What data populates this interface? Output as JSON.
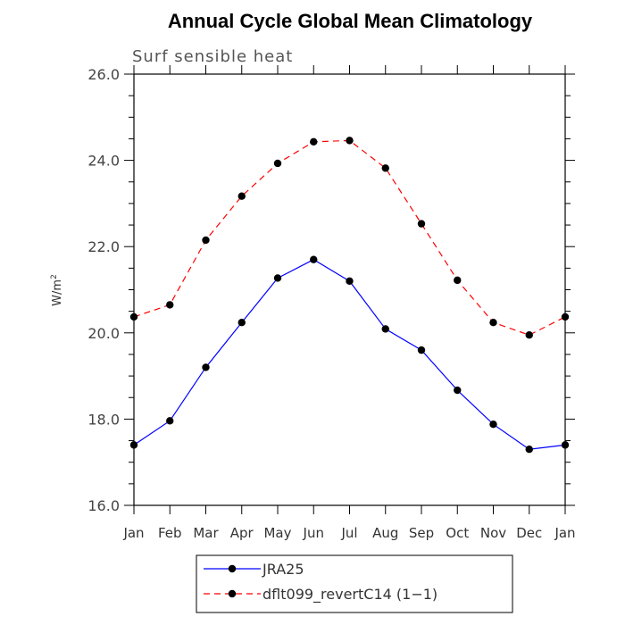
{
  "chart_data": {
    "type": "line",
    "title": "Annual Cycle Global Mean Climatology",
    "subtitle": "Surf sensible heat",
    "ylabel_text": "W/m",
    "ylabel_sup": "2",
    "categories": [
      "Jan",
      "Feb",
      "Mar",
      "Apr",
      "May",
      "Jun",
      "Jul",
      "Aug",
      "Sep",
      "Oct",
      "Nov",
      "Dec",
      "Jan"
    ],
    "ylim": [
      16.0,
      26.0
    ],
    "yticks": [
      "16.0",
      "18.0",
      "20.0",
      "22.0",
      "24.0",
      "26.0"
    ],
    "series": [
      {
        "name": "JRA25",
        "color": "#0000ff",
        "dash": "solid",
        "values": [
          17.4,
          17.96,
          19.2,
          20.24,
          21.27,
          21.7,
          21.2,
          20.09,
          19.6,
          18.67,
          17.88,
          17.3,
          17.4
        ]
      },
      {
        "name": "dflt099_revertC14 (1−1)",
        "color": "#ff0000",
        "dash": "dashed",
        "values": [
          20.37,
          20.65,
          22.15,
          23.17,
          23.93,
          24.43,
          24.46,
          23.82,
          22.53,
          21.22,
          20.24,
          19.95,
          20.37
        ]
      }
    ],
    "grid": false,
    "legend_position": "bottom"
  }
}
